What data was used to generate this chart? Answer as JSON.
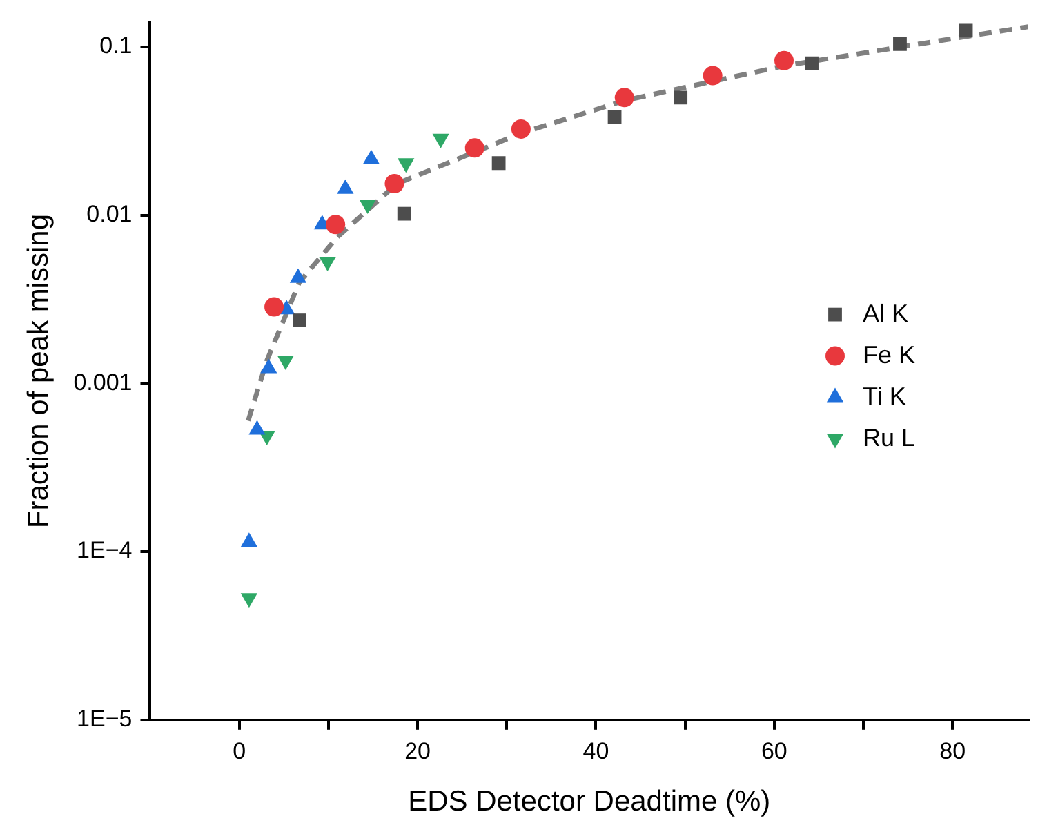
{
  "chart_data": {
    "type": "scatter",
    "xlabel": "EDS Detector Deadtime (%)",
    "ylabel": "Fraction of peak missing",
    "xlim": [
      -10,
      88.5
    ],
    "xticks": [
      0,
      {
        "value": 10,
        "label": null
      },
      20,
      {
        "value": 30,
        "label": null
      },
      40,
      {
        "value": 50,
        "label": null
      },
      60,
      {
        "value": 70,
        "label": null
      },
      80
    ],
    "ylim": [
      1e-05,
      0.14
    ],
    "yticks": [
      {
        "value": 1e-05,
        "label": "1E−5"
      },
      {
        "value": 0.0001,
        "label": "1E−4"
      },
      0.001,
      0.01,
      0.1
    ],
    "log": "y",
    "grid": false,
    "legend": "right",
    "series": [
      {
        "name": "Al K",
        "color": "#4d4d4d",
        "marker": "square",
        "x": [
          6.75,
          18.5,
          29.1,
          42.1,
          49.5,
          64.2,
          74.1,
          81.5
        ],
        "values": [
          0.00237,
          0.0102,
          0.0204,
          0.0385,
          0.05,
          0.08,
          0.104,
          0.125
        ]
      },
      {
        "name": "Fe K",
        "color": "#e8383d",
        "marker": "circle",
        "x": [
          3.9,
          10.8,
          17.4,
          26.4,
          31.6,
          43.2,
          53.1,
          61.1
        ],
        "values": [
          0.00285,
          0.0088,
          0.0154,
          0.0251,
          0.0325,
          0.05,
          0.0675,
          0.083
        ]
      },
      {
        "name": "Ti K",
        "color": "#1f6fdb",
        "marker": "triangle",
        "x": [
          1.1,
          2.0,
          3.3,
          5.3,
          6.6,
          9.3,
          11.9,
          14.8
        ],
        "values": [
          0.000114,
          0.00053,
          0.00123,
          0.00275,
          0.00423,
          0.0088,
          0.0143,
          0.0215
        ]
      },
      {
        "name": "Ru L",
        "color": "#2ea866",
        "marker": "triangle-down",
        "x": [
          1.1,
          3.1,
          5.2,
          9.9,
          14.4,
          18.7,
          22.6
        ],
        "values": [
          5.3e-05,
          0.00049,
          0.00137,
          0.0053,
          0.0116,
          0.0204,
          0.0285
        ]
      },
      {
        "type": "line",
        "color": "#808080",
        "marker": "none",
        "line_style": "dashed",
        "x": [
          1,
          3.1,
          6.75,
          11,
          17.7,
          31.6,
          43.2,
          61,
          75.2,
          88.5
        ],
        "values": [
          0.0006,
          0.00137,
          0.004,
          0.0074,
          0.0154,
          0.0307,
          0.048,
          0.077,
          0.102,
          0.132
        ]
      }
    ]
  }
}
